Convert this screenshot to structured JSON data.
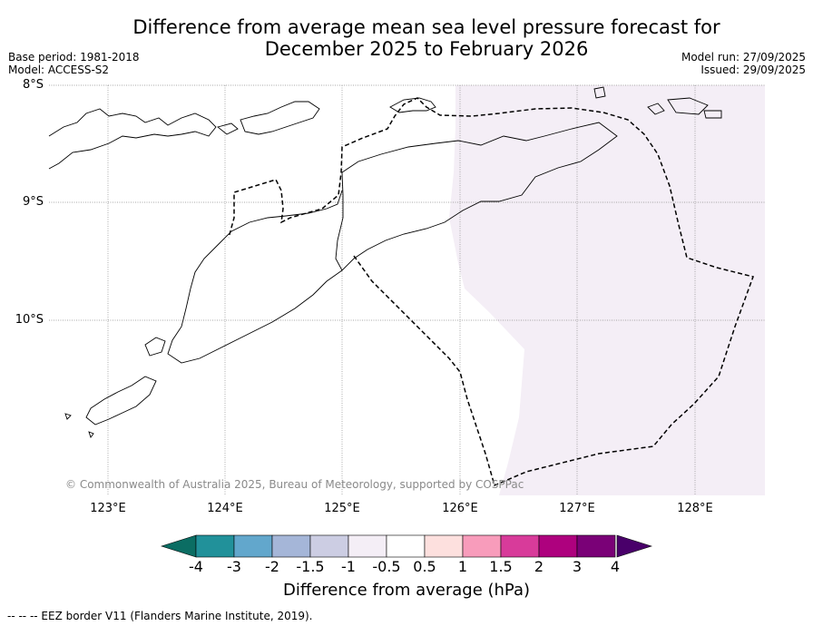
{
  "title": {
    "line1": "Difference from average mean sea level pressure forecast for",
    "line2": "December 2025 to February 2026"
  },
  "meta": {
    "base_period": "Base period: 1981-2018",
    "model": "Model: ACCESS-S2",
    "model_run": "Model run: 27/09/2025",
    "issued": "Issued: 29/09/2025"
  },
  "map": {
    "lat_labels": [
      "8°S",
      "9°S",
      "10°S"
    ],
    "lon_labels": [
      "123°E",
      "124°E",
      "125°E",
      "126°E",
      "127°E",
      "128°E"
    ],
    "copyright": "© Commonwealth of Australia 2025, Bureau of Meteorology, supported by COSPPac",
    "shaded_category": "-0.5 to -1 hPa",
    "shade_color": "#f4eef6"
  },
  "colorbar": {
    "label": "Difference from average (hPa)",
    "ticks": [
      "-4",
      "-3",
      "-2",
      "-1.5",
      "-1",
      "-0.5",
      "0.5",
      "1",
      "1.5",
      "2",
      "3",
      "4"
    ],
    "colors": [
      "#0b6d63",
      "#21919a",
      "#62a7cc",
      "#a5b6d8",
      "#cccde3",
      "#f4eef6",
      "#ffffff",
      "#fde0de",
      "#f89cbb",
      "#d83b9a",
      "#ae017e",
      "#7a0177",
      "#49006a"
    ]
  },
  "footnote": "--  --  -- EEZ border V11 (Flanders Marine Institute, 2019)."
}
